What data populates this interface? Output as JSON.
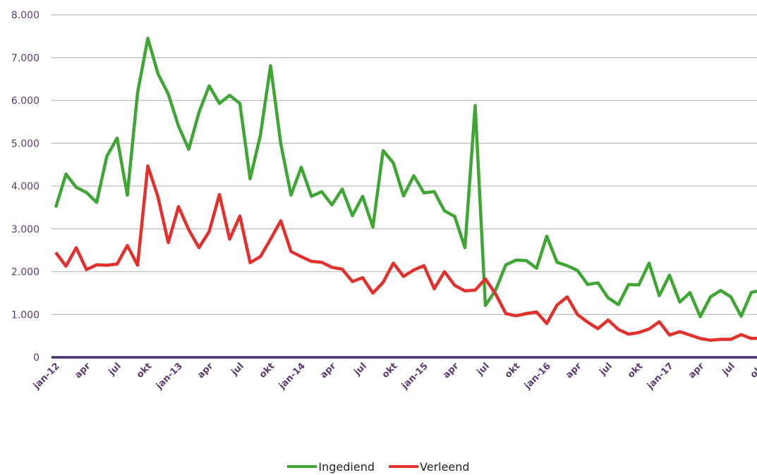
{
  "chart_data": {
    "type": "line",
    "y_tick_labels": [
      "0",
      "1.000",
      "2.000",
      "3.000",
      "4.000",
      "5.000",
      "6.000",
      "7.000",
      "8.000"
    ],
    "ylim": [
      0,
      8000
    ],
    "x": [
      "2012-01",
      "2012-02",
      "2012-03",
      "2012-04",
      "2012-05",
      "2012-06",
      "2012-07",
      "2012-08",
      "2012-09",
      "2012-10",
      "2012-11",
      "2012-12",
      "2013-01",
      "2013-02",
      "2013-03",
      "2013-04",
      "2013-05",
      "2013-06",
      "2013-07",
      "2013-08",
      "2013-09",
      "2013-10",
      "2013-11",
      "2013-12",
      "2014-01",
      "2014-02",
      "2014-03",
      "2014-04",
      "2014-05",
      "2014-06",
      "2014-07",
      "2014-08",
      "2014-09",
      "2014-10",
      "2014-11",
      "2014-12",
      "2015-01",
      "2015-02",
      "2015-03",
      "2015-04",
      "2015-05",
      "2015-06",
      "2015-07",
      "2015-08",
      "2015-09",
      "2015-10",
      "2015-11",
      "2015-12",
      "2016-01",
      "2016-02",
      "2016-03",
      "2016-04",
      "2016-05",
      "2016-06",
      "2016-07",
      "2016-08",
      "2016-09",
      "2016-10",
      "2016-11",
      "2016-12",
      "2017-01",
      "2017-02",
      "2017-03",
      "2017-04",
      "2017-05",
      "2017-06",
      "2017-07",
      "2017-08",
      "2017-09",
      "2017-10"
    ],
    "x_tick_labels": [
      "jan-12",
      "apr",
      "jul",
      "okt",
      "jan-13",
      "apr",
      "jul",
      "okt",
      "jan-14",
      "apr",
      "jul",
      "okt",
      "jan-15",
      "apr",
      "jul",
      "okt",
      "jan-16",
      "apr",
      "jul",
      "okt",
      "jan-17",
      "apr",
      "jul",
      "okt"
    ],
    "series": [
      {
        "name": "Ingediend",
        "color": "#3fa535",
        "values": [
          3500,
          4280,
          3970,
          3850,
          3620,
          4700,
          5120,
          3790,
          6180,
          7450,
          6620,
          6150,
          5400,
          4860,
          5720,
          6340,
          5930,
          6120,
          5930,
          4170,
          5180,
          6810,
          4990,
          3790,
          4440,
          3760,
          3870,
          3560,
          3930,
          3310,
          3760,
          3040,
          4830,
          4540,
          3770,
          4240,
          3840,
          3870,
          3420,
          3290,
          2560,
          5880,
          1210,
          1570,
          2160,
          2270,
          2260,
          2080,
          2830,
          2220,
          2140,
          2030,
          1700,
          1740,
          1390,
          1230,
          1700,
          1690,
          2200,
          1440,
          1920,
          1290,
          1510,
          950,
          1410,
          1560,
          1410,
          960,
          1520,
          1560
        ]
      },
      {
        "name": "Verleend",
        "color": "#e2312d",
        "values": [
          2450,
          2130,
          2560,
          2050,
          2160,
          2150,
          2180,
          2610,
          2150,
          4470,
          3740,
          2680,
          3520,
          2980,
          2560,
          2940,
          3800,
          2760,
          3300,
          2210,
          2350,
          2760,
          3190,
          2470,
          2350,
          2240,
          2220,
          2100,
          2060,
          1770,
          1860,
          1500,
          1750,
          2200,
          1890,
          2040,
          2140,
          1600,
          2000,
          1680,
          1550,
          1570,
          1830,
          1480,
          1020,
          970,
          1020,
          1060,
          790,
          1220,
          1410,
          1000,
          820,
          670,
          870,
          650,
          540,
          580,
          660,
          830,
          520,
          600,
          520,
          440,
          400,
          420,
          420,
          530,
          440,
          450
        ]
      }
    ],
    "legend_position": "bottom",
    "grid": true
  }
}
